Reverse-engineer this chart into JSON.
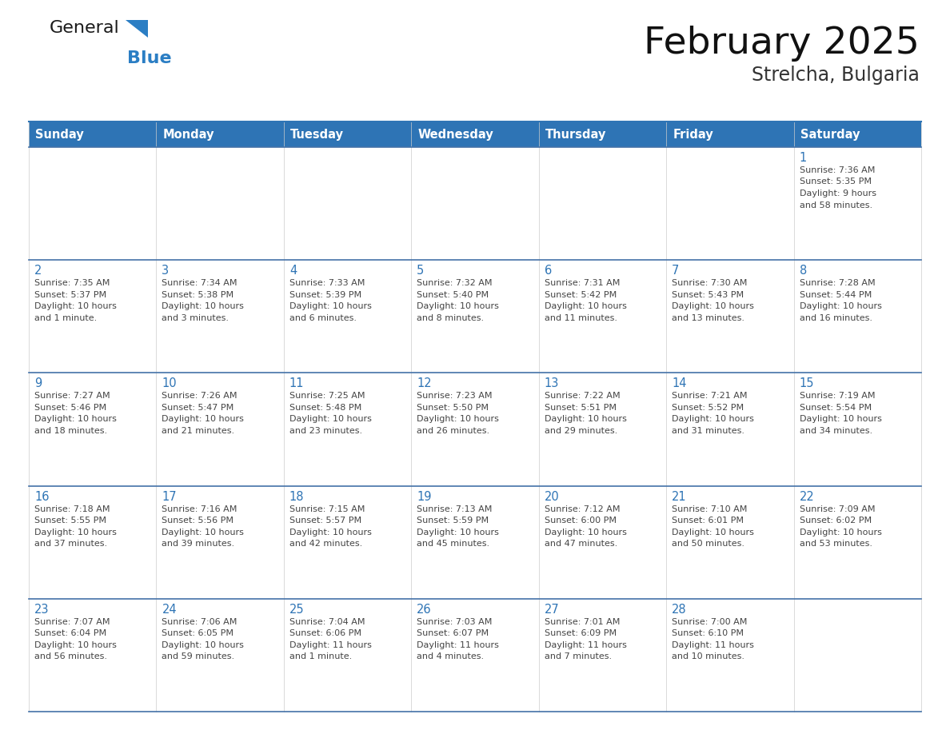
{
  "title": "February 2025",
  "subtitle": "Strelcha, Bulgaria",
  "header_bg": "#2E74B5",
  "header_text_color": "#FFFFFF",
  "border_color": "#2E74B5",
  "row_border_color": "#4472A8",
  "day_number_color": "#2E74B5",
  "text_color": "#444444",
  "days_of_week": [
    "Sunday",
    "Monday",
    "Tuesday",
    "Wednesday",
    "Thursday",
    "Friday",
    "Saturday"
  ],
  "calendar_data": [
    [
      null,
      null,
      null,
      null,
      null,
      null,
      {
        "day": "1",
        "sunrise": "7:36 AM",
        "sunset": "5:35 PM",
        "daylight": "9 hours\nand 58 minutes."
      }
    ],
    [
      {
        "day": "2",
        "sunrise": "7:35 AM",
        "sunset": "5:37 PM",
        "daylight": "10 hours\nand 1 minute."
      },
      {
        "day": "3",
        "sunrise": "7:34 AM",
        "sunset": "5:38 PM",
        "daylight": "10 hours\nand 3 minutes."
      },
      {
        "day": "4",
        "sunrise": "7:33 AM",
        "sunset": "5:39 PM",
        "daylight": "10 hours\nand 6 minutes."
      },
      {
        "day": "5",
        "sunrise": "7:32 AM",
        "sunset": "5:40 PM",
        "daylight": "10 hours\nand 8 minutes."
      },
      {
        "day": "6",
        "sunrise": "7:31 AM",
        "sunset": "5:42 PM",
        "daylight": "10 hours\nand 11 minutes."
      },
      {
        "day": "7",
        "sunrise": "7:30 AM",
        "sunset": "5:43 PM",
        "daylight": "10 hours\nand 13 minutes."
      },
      {
        "day": "8",
        "sunrise": "7:28 AM",
        "sunset": "5:44 PM",
        "daylight": "10 hours\nand 16 minutes."
      }
    ],
    [
      {
        "day": "9",
        "sunrise": "7:27 AM",
        "sunset": "5:46 PM",
        "daylight": "10 hours\nand 18 minutes."
      },
      {
        "day": "10",
        "sunrise": "7:26 AM",
        "sunset": "5:47 PM",
        "daylight": "10 hours\nand 21 minutes."
      },
      {
        "day": "11",
        "sunrise": "7:25 AM",
        "sunset": "5:48 PM",
        "daylight": "10 hours\nand 23 minutes."
      },
      {
        "day": "12",
        "sunrise": "7:23 AM",
        "sunset": "5:50 PM",
        "daylight": "10 hours\nand 26 minutes."
      },
      {
        "day": "13",
        "sunrise": "7:22 AM",
        "sunset": "5:51 PM",
        "daylight": "10 hours\nand 29 minutes."
      },
      {
        "day": "14",
        "sunrise": "7:21 AM",
        "sunset": "5:52 PM",
        "daylight": "10 hours\nand 31 minutes."
      },
      {
        "day": "15",
        "sunrise": "7:19 AM",
        "sunset": "5:54 PM",
        "daylight": "10 hours\nand 34 minutes."
      }
    ],
    [
      {
        "day": "16",
        "sunrise": "7:18 AM",
        "sunset": "5:55 PM",
        "daylight": "10 hours\nand 37 minutes."
      },
      {
        "day": "17",
        "sunrise": "7:16 AM",
        "sunset": "5:56 PM",
        "daylight": "10 hours\nand 39 minutes."
      },
      {
        "day": "18",
        "sunrise": "7:15 AM",
        "sunset": "5:57 PM",
        "daylight": "10 hours\nand 42 minutes."
      },
      {
        "day": "19",
        "sunrise": "7:13 AM",
        "sunset": "5:59 PM",
        "daylight": "10 hours\nand 45 minutes."
      },
      {
        "day": "20",
        "sunrise": "7:12 AM",
        "sunset": "6:00 PM",
        "daylight": "10 hours\nand 47 minutes."
      },
      {
        "day": "21",
        "sunrise": "7:10 AM",
        "sunset": "6:01 PM",
        "daylight": "10 hours\nand 50 minutes."
      },
      {
        "day": "22",
        "sunrise": "7:09 AM",
        "sunset": "6:02 PM",
        "daylight": "10 hours\nand 53 minutes."
      }
    ],
    [
      {
        "day": "23",
        "sunrise": "7:07 AM",
        "sunset": "6:04 PM",
        "daylight": "10 hours\nand 56 minutes."
      },
      {
        "day": "24",
        "sunrise": "7:06 AM",
        "sunset": "6:05 PM",
        "daylight": "10 hours\nand 59 minutes."
      },
      {
        "day": "25",
        "sunrise": "7:04 AM",
        "sunset": "6:06 PM",
        "daylight": "11 hours\nand 1 minute."
      },
      {
        "day": "26",
        "sunrise": "7:03 AM",
        "sunset": "6:07 PM",
        "daylight": "11 hours\nand 4 minutes."
      },
      {
        "day": "27",
        "sunrise": "7:01 AM",
        "sunset": "6:09 PM",
        "daylight": "11 hours\nand 7 minutes."
      },
      {
        "day": "28",
        "sunrise": "7:00 AM",
        "sunset": "6:10 PM",
        "daylight": "11 hours\nand 10 minutes."
      },
      null
    ]
  ],
  "fig_width": 11.88,
  "fig_height": 9.18,
  "dpi": 100
}
